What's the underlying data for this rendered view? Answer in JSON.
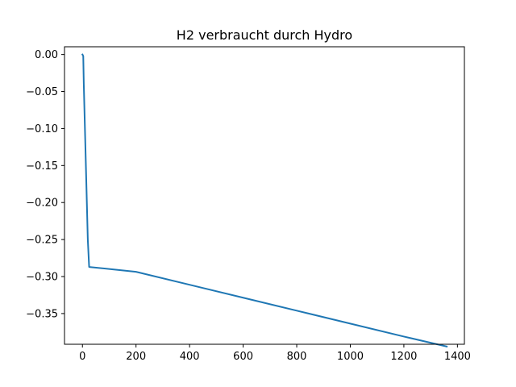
{
  "chart_data": {
    "type": "line",
    "title": "H2 verbraucht durch Hydro",
    "xlabel": "",
    "ylabel": "",
    "xlim": [
      -67,
      1426
    ],
    "ylim": [
      -0.3915,
      0.0105
    ],
    "x_ticks": [
      0,
      200,
      400,
      600,
      800,
      1000,
      1200,
      1400
    ],
    "x_tick_labels": [
      "0",
      "200",
      "400",
      "600",
      "800",
      "1000",
      "1200",
      "1400"
    ],
    "y_ticks": [
      0.0,
      -0.05,
      -0.1,
      -0.15,
      -0.2,
      -0.25,
      -0.3,
      -0.35
    ],
    "y_tick_labels": [
      "0.00",
      "−0.05",
      "−0.10",
      "−0.15",
      "−0.20",
      "−0.25",
      "−0.30",
      "−0.35"
    ],
    "grid": false,
    "series": [
      {
        "color": "#1f77b4",
        "x": [
          0,
          3,
          5,
          10,
          15,
          20,
          25,
          200,
          400,
          600,
          800,
          1000,
          1200,
          1360
        ],
        "y": [
          0.0,
          -0.002,
          -0.04,
          -0.11,
          -0.18,
          -0.25,
          -0.287,
          -0.2936,
          -0.3111,
          -0.3286,
          -0.3461,
          -0.3636,
          -0.3811,
          -0.3945
        ]
      }
    ]
  }
}
